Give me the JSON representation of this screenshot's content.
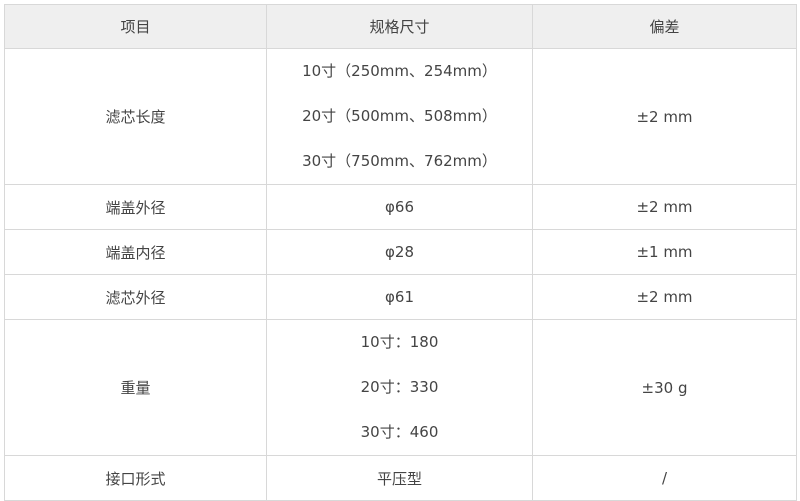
{
  "headers": [
    "项目",
    "规格尺寸",
    "偏差"
  ],
  "rows": [
    {
      "item": "滤芯长度",
      "specs": [
        "10寸（250mm、254mm）",
        "20寸（500mm、508mm）",
        "30寸（750mm、762mm）"
      ],
      "tolerance": "±2 mm"
    },
    {
      "item": "端盖外径",
      "specs": [
        "φ66"
      ],
      "tolerance": "±2 mm"
    },
    {
      "item": "端盖内径",
      "specs": [
        "φ28"
      ],
      "tolerance": "±1 mm"
    },
    {
      "item": "滤芯外径",
      "specs": [
        "φ61"
      ],
      "tolerance": "±2 mm"
    },
    {
      "item": "重量",
      "specs": [
        "10寸：180",
        "20寸：330",
        "30寸：460"
      ],
      "tolerance": "±30 g"
    },
    {
      "item": "接口形式",
      "specs": [
        "平压型"
      ],
      "tolerance": "/"
    }
  ]
}
